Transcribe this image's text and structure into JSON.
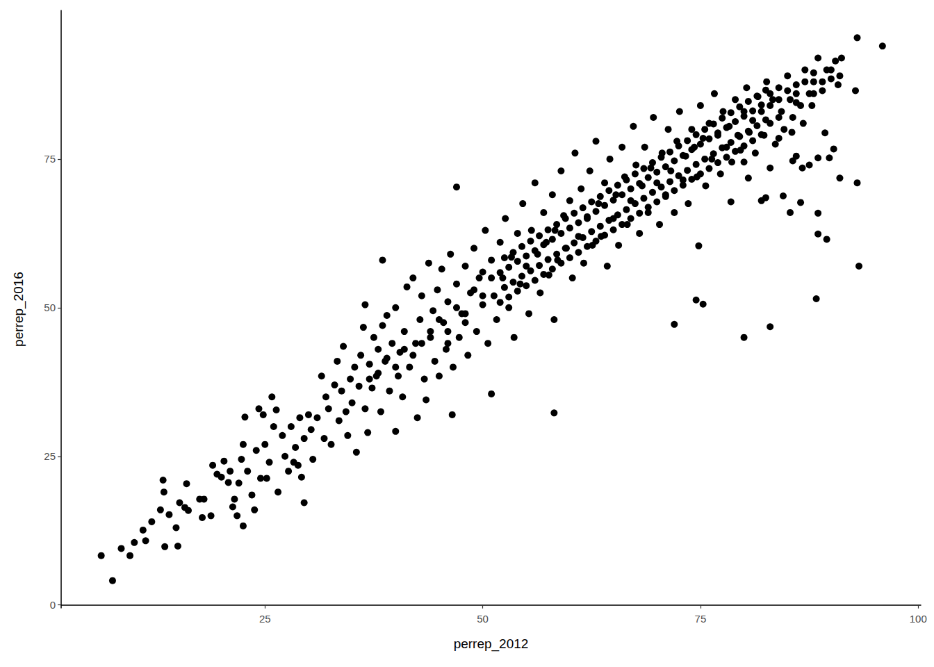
{
  "chart_data": {
    "type": "scatter",
    "x_label": "perrep_2012",
    "y_label": "perrep_2016",
    "color": "#000000",
    "marker": "circle",
    "grid": false,
    "xlim": [
      1.6,
      100.3
    ],
    "ylim": [
      -0.5,
      100
    ],
    "xticks": [
      25,
      50,
      75,
      100
    ],
    "yticks": [
      0,
      25,
      50,
      75
    ],
    "x": [
      47,
      51,
      58.2,
      80,
      83,
      88.3,
      72,
      74.5,
      75.3,
      74.8,
      89.5,
      88.5,
      93.2,
      93,
      91,
      86.5,
      84.5,
      88.5,
      85.3,
      82,
      82.5,
      89.3,
      90.3,
      89.8,
      88.5,
      86.7,
      87.5,
      85.6,
      86,
      80.5,
      78.5,
      92.8,
      93,
      95.9,
      38.5,
      36.5,
      29.5,
      22.5,
      7.5,
      6.2,
      13.5,
      15,
      13.3,
      16,
      25.8,
      40,
      46.5,
      58.2,
      8.5,
      9.5,
      10,
      11,
      11.3,
      12,
      13,
      13.4,
      14,
      14.8,
      15.2,
      15.8,
      16.2,
      17.5,
      17.8,
      18,
      18.8,
      19,
      19.5,
      20,
      20.3,
      20.8,
      21,
      21.3,
      21.5,
      21.8,
      22,
      22.3,
      22.5,
      22.7,
      23,
      23.5,
      23.8,
      24,
      24.3,
      24.5,
      24.8,
      25,
      25.2,
      25.5,
      26,
      26.3,
      26.5,
      27,
      27.3,
      27.7,
      28,
      28.3,
      28.5,
      28.8,
      29,
      29.2,
      29.5,
      30,
      30.3,
      30.5,
      31,
      31.5,
      31.8,
      32,
      32.3,
      32.6,
      33,
      33.3,
      33.5,
      33.8,
      34,
      34.3,
      34.5,
      34.8,
      35,
      35.3,
      35.5,
      35.8,
      36,
      36.3,
      36.5,
      36.8,
      37,
      37.3,
      37.5,
      37.8,
      38,
      38.3,
      38.5,
      38.8,
      39,
      39.3,
      39.6,
      40,
      40.3,
      40.5,
      40.8,
      41,
      41.3,
      41.6,
      42,
      42.3,
      42.5,
      42.8,
      43,
      43.3,
      43.5,
      43.8,
      44,
      44.3,
      44.5,
      44.8,
      45,
      45.3,
      45.5,
      45.8,
      46,
      46.3,
      46.6,
      47,
      47.3,
      47.6,
      48,
      48.3,
      48.6,
      49,
      49.3,
      49.6,
      50,
      50.3,
      50.6,
      51,
      51.3,
      51.6,
      52,
      52.3,
      52.6,
      53,
      53.3,
      53.6,
      54,
      54.3,
      54.6,
      55,
      55.3,
      55.6,
      56,
      56.3,
      56.6,
      57,
      57.3,
      57.6,
      58,
      58.3,
      58.6,
      59,
      59.3,
      59.6,
      60,
      60.3,
      60.6,
      61,
      61.3,
      61.6,
      62,
      62.3,
      62.6,
      63,
      63.3,
      63.6,
      64,
      64.3,
      64.6,
      65,
      65.3,
      65.6,
      66,
      66.3,
      66.6,
      67,
      67.3,
      67.6,
      68,
      68.3,
      68.6,
      69,
      69.3,
      69.6,
      70,
      70.3,
      70.6,
      71,
      71.3,
      71.6,
      72,
      72.3,
      72.6,
      73,
      73.3,
      73.6,
      74,
      74.3,
      74.6,
      75,
      75.3,
      75.6,
      76,
      76.3,
      76.6,
      77,
      77.3,
      77.6,
      78,
      78.3,
      78.6,
      79,
      79.3,
      79.6,
      80,
      80.3,
      80.6,
      81,
      81.3,
      81.6,
      82,
      82.3,
      82.6,
      83,
      83.3,
      83.6,
      84,
      84.3,
      84.6,
      85,
      85.3,
      85.6,
      86,
      86.5,
      87,
      87.5,
      88,
      88.5,
      89,
      89.5,
      90,
      90.5,
      91,
      91.2,
      90.8,
      87.8,
      86.8,
      84,
      80,
      83,
      85.5,
      52,
      52.5,
      52,
      52.5,
      53,
      53.5,
      53,
      53.5,
      54,
      54.5,
      54,
      54.5,
      55,
      55.5,
      55,
      55.5,
      56,
      56.5,
      56,
      56.5,
      57,
      57.5,
      57,
      57.5,
      58,
      58.5,
      58,
      58.5,
      59,
      59.5,
      59,
      59.5,
      60,
      60.5,
      60,
      60.5,
      61,
      61.5,
      61,
      61.5,
      62,
      62.5,
      62,
      62.5,
      63,
      63.5,
      63,
      63.5,
      64,
      64.5,
      64,
      64.5,
      65,
      65.5,
      65,
      65.5,
      66,
      66.5,
      66,
      66.5,
      67,
      67.5,
      67,
      67.5,
      68,
      68.5,
      68,
      68.5,
      69,
      69.5,
      69,
      69.5,
      70,
      70.5,
      70,
      70.5,
      71,
      71.5,
      71,
      71.5,
      72,
      72.5,
      72,
      72.5,
      73,
      73.5,
      73,
      73.5,
      74,
      74.5,
      74,
      74.5,
      75,
      75.5,
      75,
      75.5,
      76,
      76.5,
      76,
      76.5,
      77,
      77.5,
      77,
      77.5,
      78,
      78.5,
      78,
      78.5,
      79,
      79.5,
      79,
      79.5,
      80,
      80.5,
      80,
      80.5,
      81,
      81.5,
      81,
      81.5,
      82,
      82.5,
      82,
      82.5,
      44,
      45,
      46,
      47,
      48,
      49,
      50,
      51,
      46,
      48,
      50,
      43,
      42,
      41,
      40,
      39,
      38,
      37,
      83,
      84,
      85,
      86,
      87,
      88,
      89,
      90,
      86,
      88,
      84,
      83
    ],
    "values": [
      70.3,
      35.5,
      32.3,
      45,
      46.8,
      51.5,
      47.2,
      51.3,
      50.6,
      60.4,
      61.5,
      62.4,
      57,
      71,
      71.8,
      67.7,
      68.8,
      65.9,
      66,
      68,
      68.5,
      79.4,
      76.7,
      75.2,
      75.2,
      73.5,
      74,
      74.7,
      75.5,
      71.8,
      67.8,
      86.5,
      95.4,
      94,
      58,
      50.5,
      17.2,
      13.3,
      4.1,
      8.3,
      9.8,
      9.9,
      21,
      20.4,
      35,
      29.2,
      32,
      48,
      9.5,
      8.3,
      10.5,
      12.6,
      10.8,
      14,
      16,
      19,
      15.2,
      13,
      17.2,
      16.4,
      15.9,
      17.8,
      14.7,
      17.8,
      15,
      23.5,
      22,
      21.5,
      24.2,
      20.6,
      22.5,
      16.5,
      17.8,
      15,
      20.5,
      24.5,
      27,
      31.6,
      22.5,
      18.5,
      16,
      26,
      33,
      21.3,
      32,
      27,
      21.3,
      24,
      30,
      32.8,
      19,
      28.5,
      25,
      22.5,
      30,
      24,
      26.5,
      23.5,
      31.5,
      21.5,
      28,
      32,
      29.5,
      24.5,
      31.5,
      38.5,
      28,
      35,
      33,
      27,
      37,
      41,
      31,
      36,
      43.5,
      32.5,
      28.5,
      38,
      34,
      40,
      25.7,
      36.8,
      42,
      46.7,
      33,
      29,
      40.5,
      36.5,
      45,
      38.5,
      43,
      32.5,
      47,
      41,
      48.7,
      36,
      44,
      50,
      38.5,
      42.5,
      35,
      46,
      53.5,
      40,
      55,
      44,
      31.5,
      48,
      52,
      38,
      34.5,
      57.5,
      45,
      49.5,
      41,
      53,
      38.5,
      56.5,
      47.5,
      43,
      51,
      59,
      40,
      54,
      45,
      49,
      57,
      42,
      52.5,
      60,
      46,
      55,
      50.5,
      63,
      44,
      58,
      52,
      48,
      61,
      55,
      65,
      50,
      58.5,
      45,
      62.5,
      54,
      67.5,
      57,
      49,
      63,
      71,
      59,
      52.5,
      66,
      61,
      55.5,
      69,
      63,
      58,
      73,
      65.5,
      60,
      68,
      55,
      76,
      62,
      70,
      57.5,
      65,
      73,
      60.5,
      78,
      67.5,
      62,
      71,
      57,
      75,
      65,
      69,
      60.5,
      77,
      72,
      64,
      68,
      80.5,
      74,
      62.5,
      70.5,
      77,
      66,
      73.5,
      82,
      71,
      64,
      76,
      69,
      80,
      73,
      66,
      78,
      83,
      71.5,
      75.5,
      67.5,
      80,
      77,
      72,
      84,
      78.5,
      70.5,
      81,
      75,
      86,
      79,
      72.5,
      83,
      77,
      80.5,
      74.5,
      85,
      79,
      76.5,
      83,
      87,
      79.5,
      81.5,
      76,
      85.5,
      83,
      79,
      88,
      81,
      85,
      77.5,
      87,
      83,
      80,
      89,
      85,
      82,
      87.5,
      84,
      90,
      86,
      88,
      92,
      86.5,
      90,
      88.5,
      91.5,
      89,
      92,
      87.5,
      84,
      81,
      78.5,
      74.5,
      73.5,
      79.5,
      50.9,
      53.4,
      55.9,
      58.4,
      51.8,
      54.3,
      56.8,
      59.3,
      52.8,
      55.3,
      57.8,
      60.3,
      53.7,
      56.2,
      58.7,
      61.2,
      54.6,
      57.1,
      59.6,
      62.1,
      55.6,
      58.1,
      60.6,
      63.1,
      56.5,
      59,
      61.5,
      64,
      57.5,
      60,
      62.5,
      65,
      58.4,
      60.9,
      63.4,
      65.9,
      59.3,
      61.8,
      64.3,
      66.8,
      60.3,
      62.8,
      65.3,
      67.8,
      61.2,
      63.7,
      66.2,
      68.7,
      62.2,
      64.7,
      67.2,
      69.7,
      63.1,
      65.6,
      68.1,
      70.6,
      64,
      66.5,
      69,
      71.5,
      65,
      67.5,
      70,
      72.5,
      65.9,
      68.4,
      70.9,
      73.4,
      66.9,
      69.4,
      71.9,
      74.4,
      67.8,
      70.3,
      72.8,
      75.3,
      68.7,
      71.2,
      73.7,
      76.2,
      69.7,
      72.2,
      74.7,
      77.2,
      70.6,
      73.1,
      75.6,
      78.1,
      71.6,
      74.1,
      76.6,
      79.1,
      72.5,
      75,
      77.5,
      80,
      73.4,
      75.9,
      78.4,
      80.9,
      74.4,
      76.9,
      79.4,
      81.9,
      75.3,
      77.8,
      80.3,
      82.8,
      76.3,
      78.8,
      81.3,
      83.8,
      77.2,
      79.7,
      82.2,
      84.7,
      78.1,
      80.6,
      83.1,
      85.6,
      79.1,
      81.6,
      84.1,
      86.6,
      46,
      48,
      46,
      50,
      49,
      53,
      52,
      55,
      44,
      47.5,
      56,
      44,
      42,
      43,
      40,
      41.5,
      39,
      38,
      84,
      85,
      86.5,
      86,
      88,
      89.5,
      88,
      90,
      84.5,
      86,
      82,
      86
    ]
  }
}
